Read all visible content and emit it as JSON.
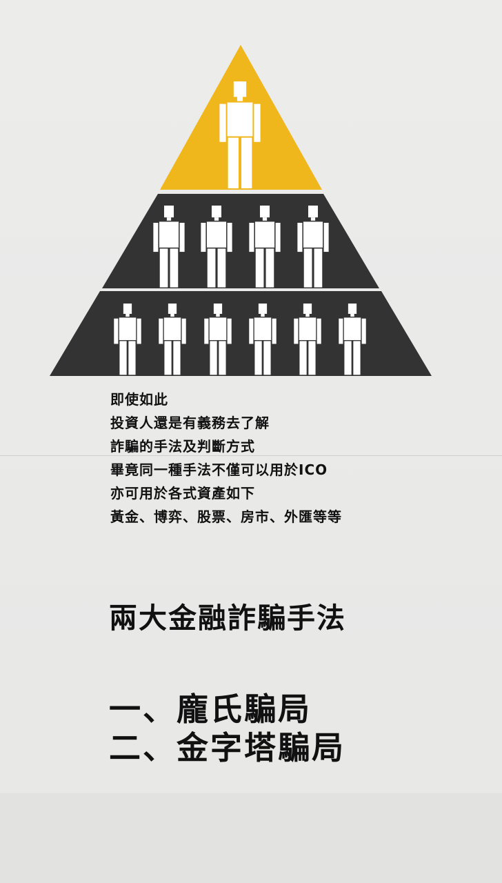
{
  "colors": {
    "background": "#e9e9e8",
    "pyramid_top": "#f0b71c",
    "pyramid_base": "#333333",
    "figure": "#ffffff",
    "text": "#111111"
  },
  "illustration": {
    "icon": "pyramid-scheme-people-icon",
    "rows": [
      1,
      4,
      6
    ]
  },
  "intro_lines": [
    "即使如此",
    "投資人還是有義務去了解",
    "詐騙的手法及判斷方式",
    "畢竟同一種手法不僅可以用於ICO",
    "亦可用於各式資產如下",
    "黃金、博弈、股票、房市、外匯等等"
  ],
  "heading": "兩大金融詐騙手法",
  "methods": [
    "一、龐氏騙局",
    "二、金字塔騙局"
  ]
}
